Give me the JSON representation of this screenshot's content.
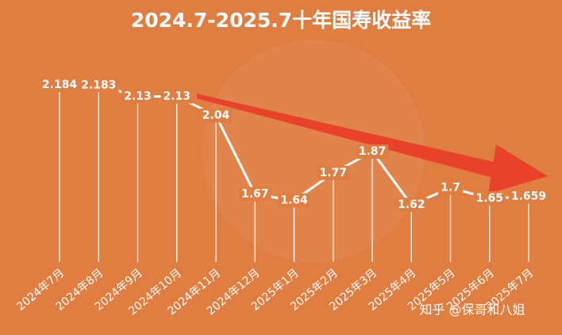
{
  "chart_data": {
    "type": "line",
    "title": "2024.7-2025.7十年国寿收益率",
    "categories": [
      "2024年7月",
      "2024年8月",
      "2024年9月",
      "2024年10月",
      "2024年11月",
      "2024年12月",
      "2025年1月",
      "2025年2月",
      "2025年3月",
      "2025年4月",
      "2025年5月",
      "2025年6月",
      "2025年7月"
    ],
    "values": [
      2.184,
      2.183,
      2.13,
      2.13,
      2.04,
      1.67,
      1.64,
      1.77,
      1.87,
      1.62,
      1.7,
      1.65,
      1.659
    ],
    "color": "#ffffff",
    "background": "#e07d41",
    "watermark": "知乎 @保哥和八姐"
  }
}
